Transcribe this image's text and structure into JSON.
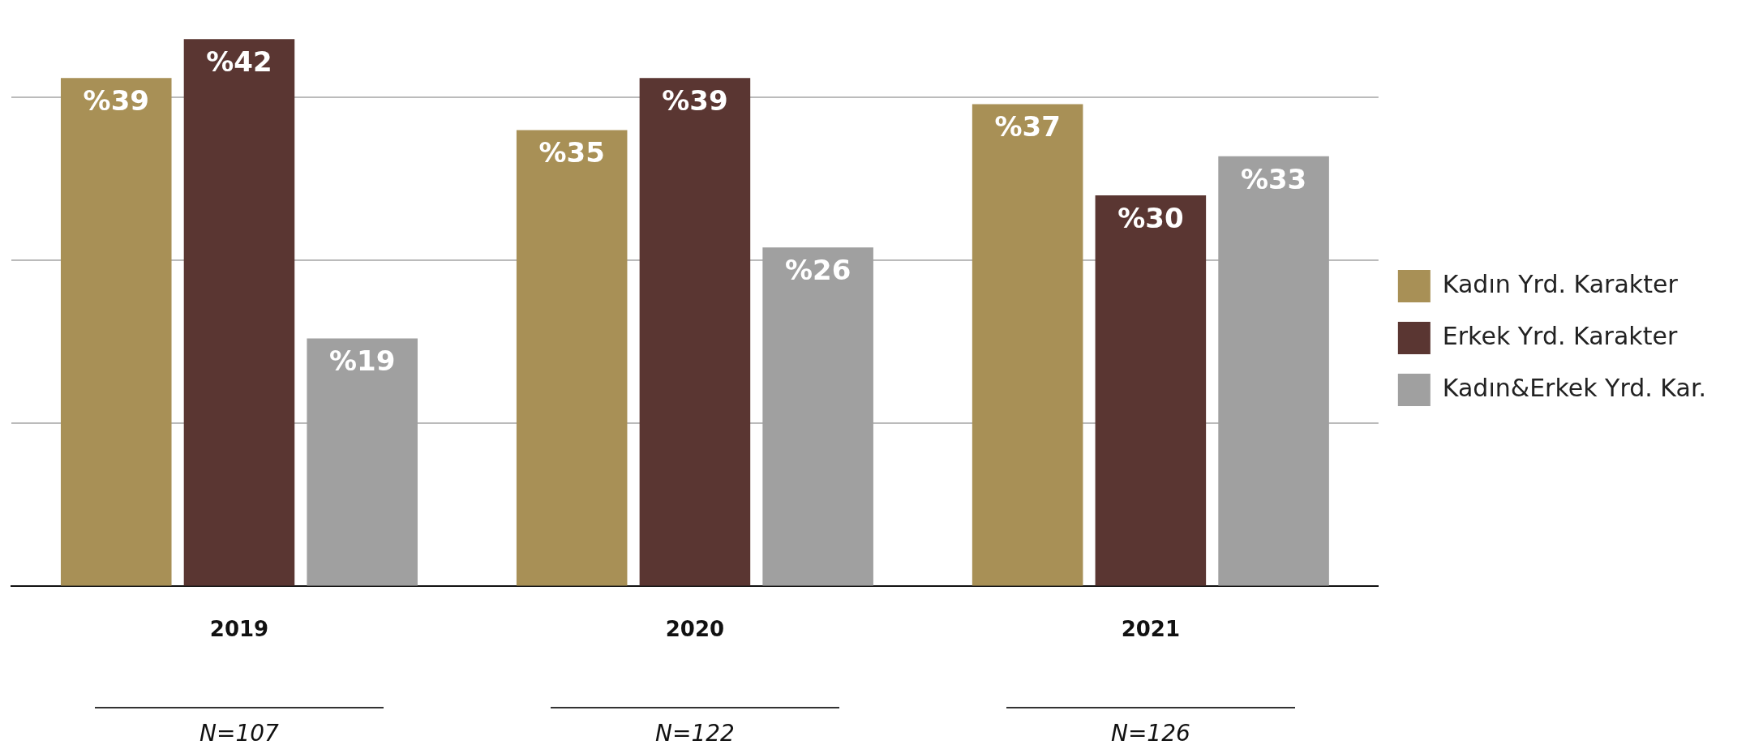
{
  "chart_data": {
    "type": "bar",
    "categories": [
      "2019",
      "2020",
      "2021"
    ],
    "series": [
      {
        "name": "Kadın Yrd. Karakter",
        "color": "#a89056",
        "values": [
          39,
          35,
          37
        ],
        "value_labels": [
          "%39",
          "%35",
          "%37"
        ]
      },
      {
        "name": "Erkek Yrd. Karakter",
        "color": "#5a3632",
        "values": [
          42,
          39,
          30
        ],
        "value_labels": [
          "%42",
          "%39",
          "%30"
        ]
      },
      {
        "name": "Kadın&Erkek Yrd. Kar.",
        "color": "#a0a0a0",
        "values": [
          19,
          26,
          33
        ],
        "value_labels": [
          "%19",
          "%26",
          "%33"
        ]
      }
    ],
    "yticks": [
      {
        "value": 12.5,
        "label": null
      },
      {
        "value": 25,
        "label": null
      },
      {
        "value": 37.5,
        "label": null
      }
    ],
    "grid": "y",
    "legend": "right",
    "tick_labels": "x",
    "annotations": [
      "N=107",
      "N=122",
      "N=126"
    ]
  }
}
